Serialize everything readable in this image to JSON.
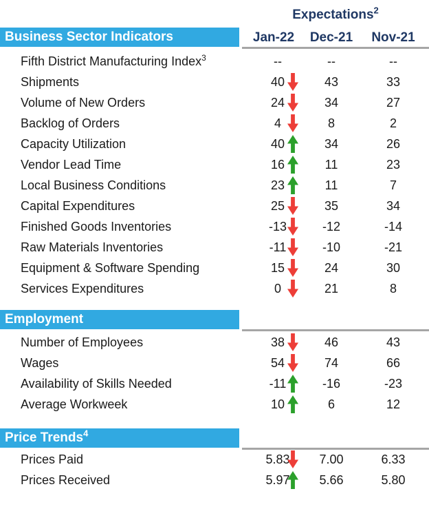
{
  "colors": {
    "section_bar": "#31A9E1",
    "header_text": "#1F3864",
    "rule": "#A6A6A6",
    "body_text": "#1A1A1A",
    "arrow_up": "#2BA02B",
    "arrow_down": "#ED3E38"
  },
  "table": {
    "expectations_label": "Expectations",
    "expectations_sup": "2",
    "columns": [
      "Jan-22",
      "Dec-21",
      "Nov-21"
    ],
    "sections": [
      {
        "title": "Business Sector Indicators",
        "title_sup": "",
        "show_columns": true,
        "rows": [
          {
            "label": "Fifth District Manufacturing Index",
            "label_sup": "3",
            "jan": "--",
            "trend": "none",
            "dec": "--",
            "nov": "--"
          },
          {
            "label": "Shipments",
            "label_sup": "",
            "jan": "40",
            "trend": "down",
            "dec": "43",
            "nov": "33"
          },
          {
            "label": "Volume of New Orders",
            "label_sup": "",
            "jan": "24",
            "trend": "down",
            "dec": "34",
            "nov": "27"
          },
          {
            "label": "Backlog of Orders",
            "label_sup": "",
            "jan": "4",
            "trend": "down",
            "dec": "8",
            "nov": "2"
          },
          {
            "label": "Capacity Utilization",
            "label_sup": "",
            "jan": "40",
            "trend": "up",
            "dec": "34",
            "nov": "26"
          },
          {
            "label": "Vendor Lead Time",
            "label_sup": "",
            "jan": "16",
            "trend": "up",
            "dec": "11",
            "nov": "23"
          },
          {
            "label": "Local Business Conditions",
            "label_sup": "",
            "jan": "23",
            "trend": "up",
            "dec": "11",
            "nov": "7"
          },
          {
            "label": "Capital Expenditures",
            "label_sup": "",
            "jan": "25",
            "trend": "down",
            "dec": "35",
            "nov": "34"
          },
          {
            "label": "Finished Goods Inventories",
            "label_sup": "",
            "jan": "-13",
            "trend": "down",
            "dec": "-12",
            "nov": "-14"
          },
          {
            "label": "Raw Materials Inventories",
            "label_sup": "",
            "jan": "-11",
            "trend": "down",
            "dec": "-10",
            "nov": "-21"
          },
          {
            "label": "Equipment & Software Spending",
            "label_sup": "",
            "jan": "15",
            "trend": "down",
            "dec": "24",
            "nov": "30"
          },
          {
            "label": "Services Expenditures",
            "label_sup": "",
            "jan": "0",
            "trend": "down",
            "dec": "21",
            "nov": "8"
          }
        ]
      },
      {
        "title": "Employment",
        "title_sup": "",
        "show_columns": false,
        "rows": [
          {
            "label": "Number of Employees",
            "label_sup": "",
            "jan": "38",
            "trend": "down",
            "dec": "46",
            "nov": "43"
          },
          {
            "label": "Wages",
            "label_sup": "",
            "jan": "54",
            "trend": "down",
            "dec": "74",
            "nov": "66"
          },
          {
            "label": "Availability of Skills Needed",
            "label_sup": "",
            "jan": "-11",
            "trend": "up",
            "dec": "-16",
            "nov": "-23"
          },
          {
            "label": "Average Workweek",
            "label_sup": "",
            "jan": "10",
            "trend": "up",
            "dec": "6",
            "nov": "12"
          }
        ]
      },
      {
        "title": "Price Trends",
        "title_sup": "4",
        "show_columns": false,
        "rows": [
          {
            "label": "Prices Paid",
            "label_sup": "",
            "jan": "5.83",
            "trend": "down",
            "dec": "7.00",
            "nov": "6.33"
          },
          {
            "label": "Prices Received",
            "label_sup": "",
            "jan": "5.97",
            "trend": "up",
            "dec": "5.66",
            "nov": "5.80"
          }
        ]
      }
    ]
  }
}
